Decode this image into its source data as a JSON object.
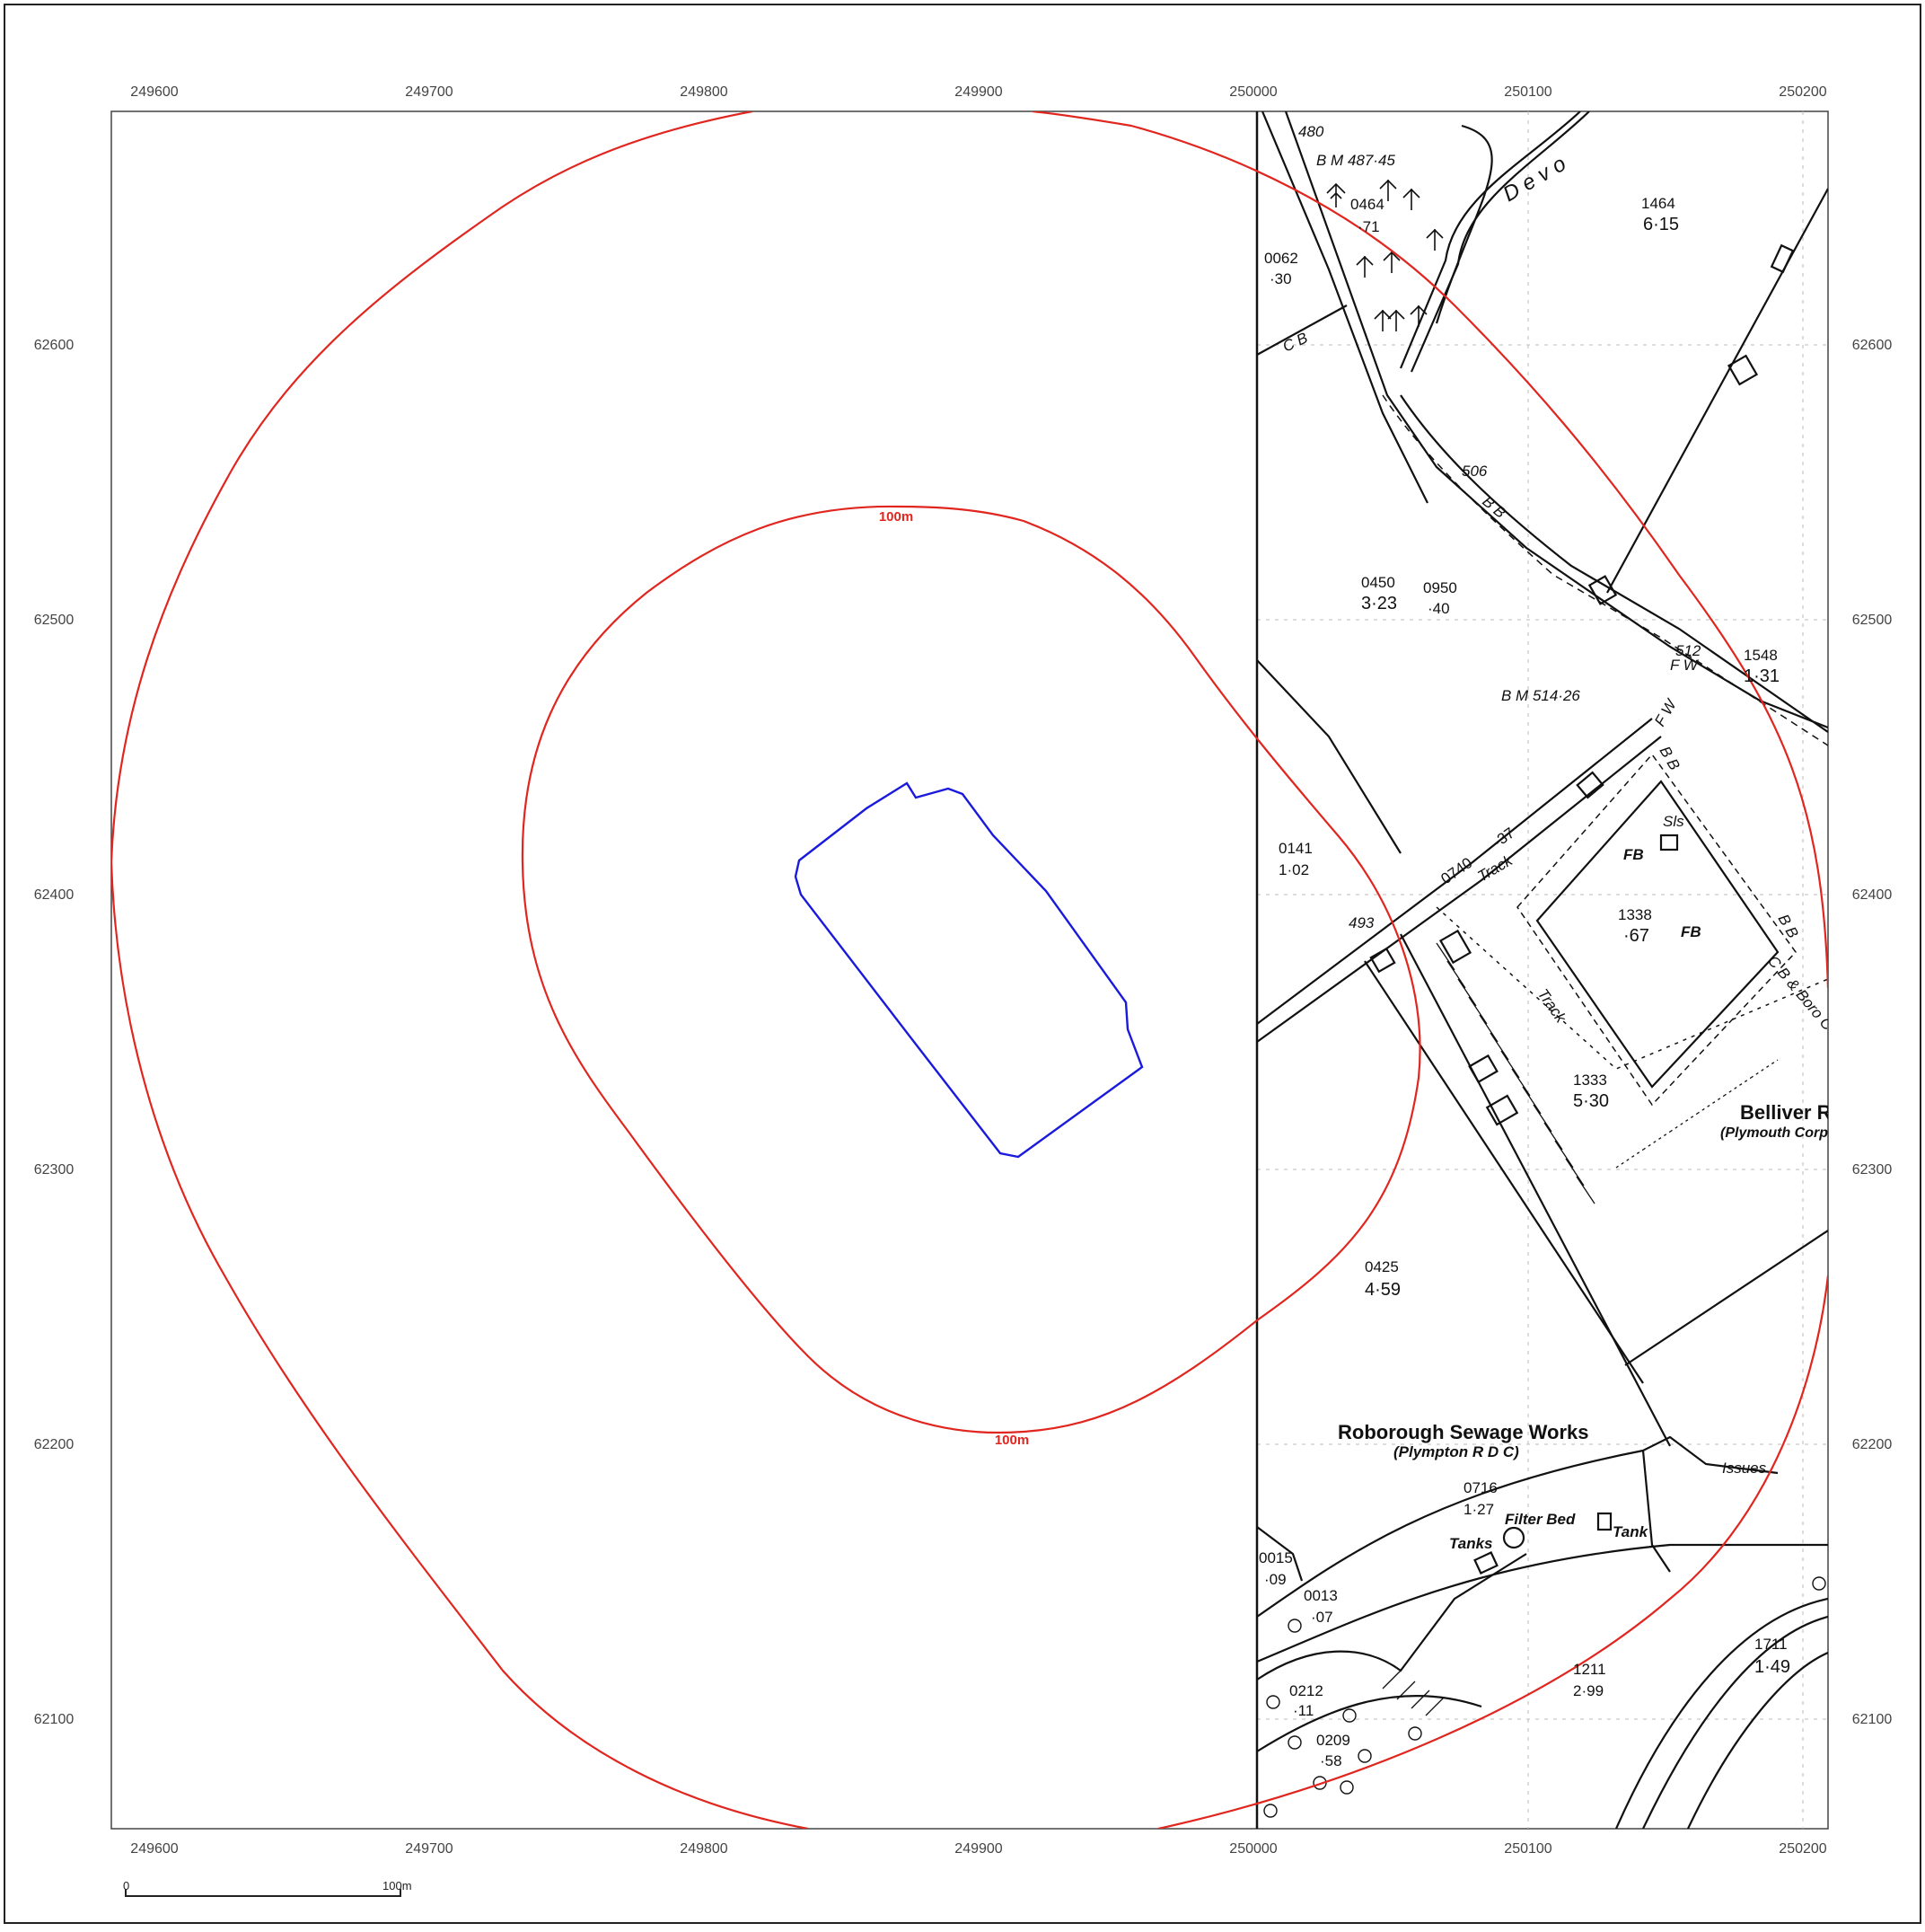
{
  "axes": {
    "x_ticks": [
      "249600",
      "249700",
      "249800",
      "249900",
      "250000",
      "250100",
      "250200"
    ],
    "y_ticks": [
      "62600",
      "62500",
      "62400",
      "62300",
      "62200",
      "62100"
    ]
  },
  "buffers": [
    {
      "label": "100m",
      "color": "#e0261f"
    },
    {
      "label": "100m",
      "color": "#e0261f"
    }
  ],
  "site_boundary": {
    "color": "#1a1adc"
  },
  "scale_bar": {
    "start_label": "0",
    "end_label": "100m"
  },
  "map_text": {
    "bm_1": "B M 487·45",
    "bm_2": "B M 514·26",
    "spot_480": "480",
    "spot_506": "506",
    "spot_512": "512",
    "spot_493": "493",
    "devon": "D e v o",
    "parcel_0464": "0464",
    "parcel_0464_area": "·71",
    "parcel_0062": "0062",
    "parcel_0062_area": "·30",
    "parcel_1464": "1464",
    "parcel_1464_area": "6·15",
    "parcel_0450": "0450",
    "parcel_0450_area": "3·23",
    "parcel_0950": "0950",
    "parcel_0950_area": "·40",
    "parcel_1548": "1548",
    "parcel_1548_area": "1·31",
    "parcel_0141": "0141",
    "parcel_0141_area": "1·02",
    "parcel_0740": "0740",
    "parcel_0740_area": "·37",
    "parcel_1338": "1338",
    "parcel_1338_area": "·67",
    "parcel_1333": "1333",
    "parcel_1333_area": "5·30",
    "parcel_0425": "0425",
    "parcel_0425_area": "4·59",
    "parcel_0716": "0716",
    "parcel_0716_area": "1·27",
    "parcel_0015": "0015",
    "parcel_0015_area": "·09",
    "parcel_0013": "0013",
    "parcel_0013_area": "·07",
    "parcel_0212": "0212",
    "parcel_0212_area": "·11",
    "parcel_0209": "0209",
    "parcel_0209_area": "·58",
    "parcel_1211": "1211",
    "parcel_1211_area": "2·99",
    "parcel_1711": "1711",
    "parcel_1711_area": "1·49",
    "cb_1": "C B",
    "bb_1": "B B",
    "bb_2": "B B",
    "bb_3": "B B",
    "fw_1": "F W",
    "fw_2": "F W",
    "fb_1": "FB",
    "fb_2": "FB",
    "sls": "Sls",
    "track_1": "Track",
    "track_2": "Track",
    "cb_boro": "C B & Boro C",
    "belliver": "Belliver R",
    "plymouth_corp": "(Plymouth Corp",
    "sewage_works": "Roborough Sewage Works",
    "plympton": "(Plympton R D C)",
    "filter_bed": "Filter Bed",
    "tanks": "Tanks",
    "tank": "Tank",
    "issues": "Issues"
  }
}
